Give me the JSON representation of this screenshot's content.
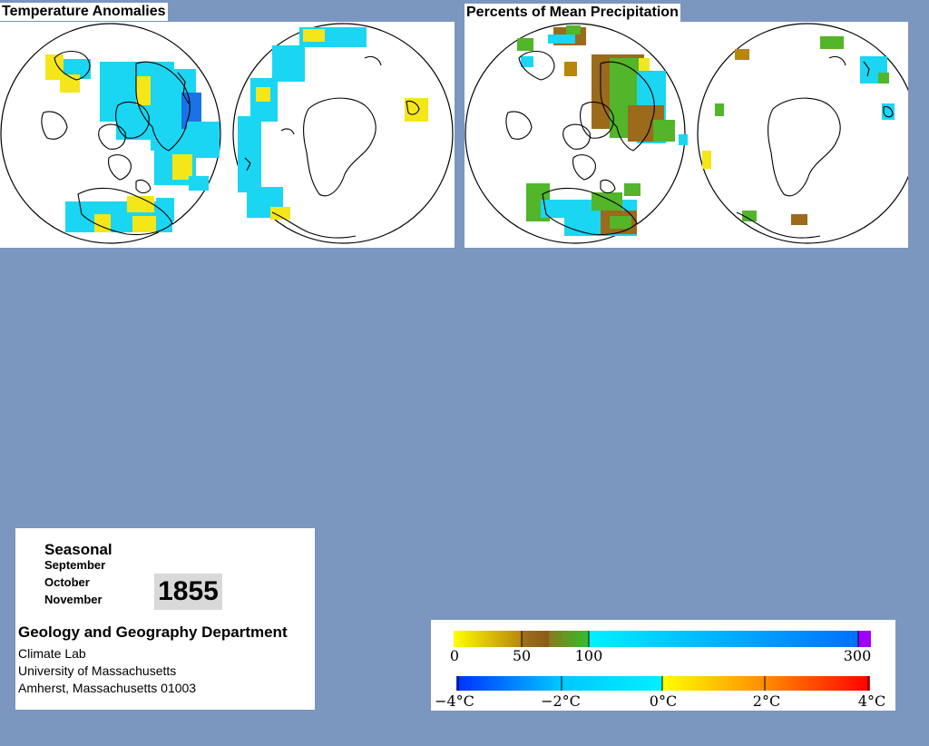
{
  "temperature_map": {
    "title": "Temperature Anomalies"
  },
  "precipitation_map": {
    "title": "Percents of Mean Precipitation"
  },
  "info": {
    "mode": "Seasonal",
    "months": [
      "September",
      "October",
      "November"
    ],
    "year": "1855",
    "department": "Geology and Geography Department",
    "lab": "Climate Lab",
    "university": "University of Massachusetts",
    "address": "Amherst, Massachusetts 01003"
  },
  "legend": {
    "precipitation": {
      "labels": [
        "0",
        "50",
        "100",
        "300"
      ],
      "colors": [
        "#ffff00",
        "#b8860b",
        "#8b5a1a",
        "#2fbf2f",
        "#00e5ff",
        "#0070ff",
        "#a000ff"
      ]
    },
    "temperature": {
      "labels": [
        "−4°C",
        "−2°C",
        "0°C",
        "2°C",
        "4°C"
      ],
      "colors": [
        "#0030ff",
        "#00c8ff",
        "#ffff00",
        "#ff8c00",
        "#ff0000"
      ]
    }
  },
  "colors": {
    "background": "#7b96bf",
    "cyan_anomaly": "#1ad6f2",
    "yellow_anomaly": "#f5e61a",
    "brown_precip": "#9b6a1a",
    "green_precip": "#52b52a"
  }
}
